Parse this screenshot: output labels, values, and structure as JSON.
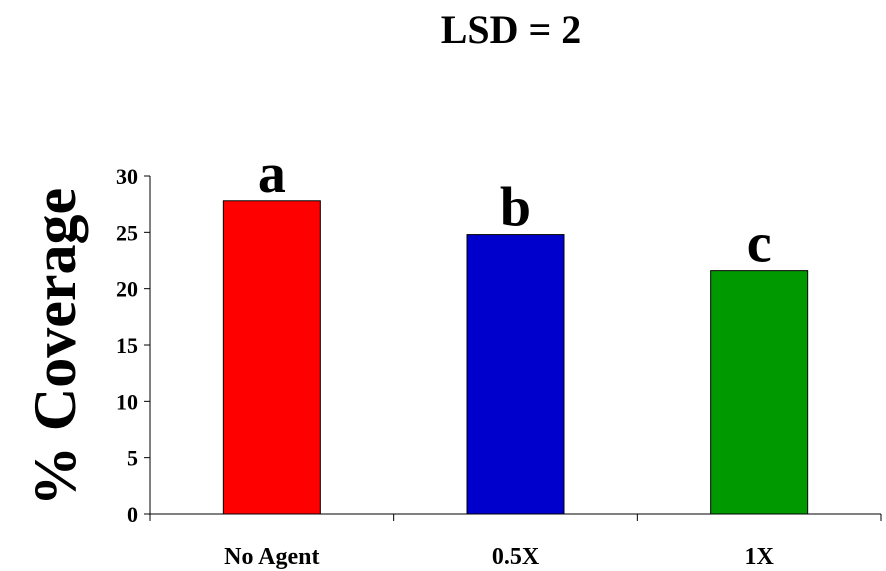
{
  "chart_data": {
    "type": "bar",
    "title": "LSD = 2",
    "xlabel": "",
    "ylabel": "% Coverage",
    "ylim": [
      0,
      30
    ],
    "yticks": [
      0,
      5,
      10,
      15,
      20,
      25,
      30
    ],
    "categories": [
      "No Agent",
      "0.5X",
      "1X"
    ],
    "values": [
      27.8,
      24.8,
      21.6
    ],
    "annotations": [
      "a",
      "b",
      "c"
    ],
    "colors": [
      "#ff0000",
      "#0000cc",
      "#009900"
    ],
    "grid": false,
    "legend": "none"
  }
}
